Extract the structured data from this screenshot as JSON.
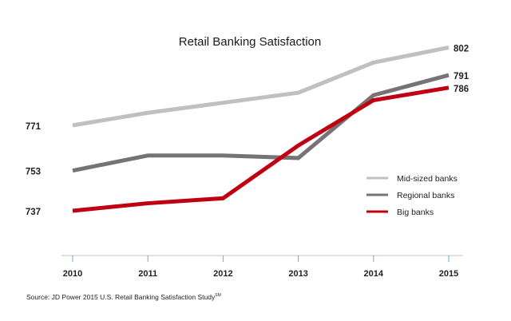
{
  "chart_data": {
    "type": "line",
    "title": "Retail Banking Satisfaction",
    "xlabel": "",
    "ylabel": "",
    "categories": [
      "2010",
      "2011",
      "2012",
      "2013",
      "2014",
      "2015"
    ],
    "ylim": [
      720,
      810
    ],
    "grid": false,
    "legend_position": "right",
    "series": [
      {
        "name": "Mid-sized banks",
        "color": "#c0c0c0",
        "values": [
          771,
          776,
          780,
          784,
          796,
          802
        ]
      },
      {
        "name": "Regional banks",
        "color": "#777374",
        "values": [
          753,
          759,
          759,
          758,
          783,
          791
        ]
      },
      {
        "name": "Big banks",
        "color": "#c00010",
        "values": [
          737,
          740,
          742,
          763,
          781,
          786
        ]
      }
    ],
    "start_labels": [
      "771",
      "753",
      "737"
    ],
    "end_labels": [
      "802",
      "791",
      "786"
    ],
    "axis_color": "#bfbfbf",
    "tick_color": "#6fa8dc"
  },
  "source": {
    "text": "Source: JD Power 2015 U.S. Retail Banking Satisfaction Study",
    "superscript": "SM"
  }
}
